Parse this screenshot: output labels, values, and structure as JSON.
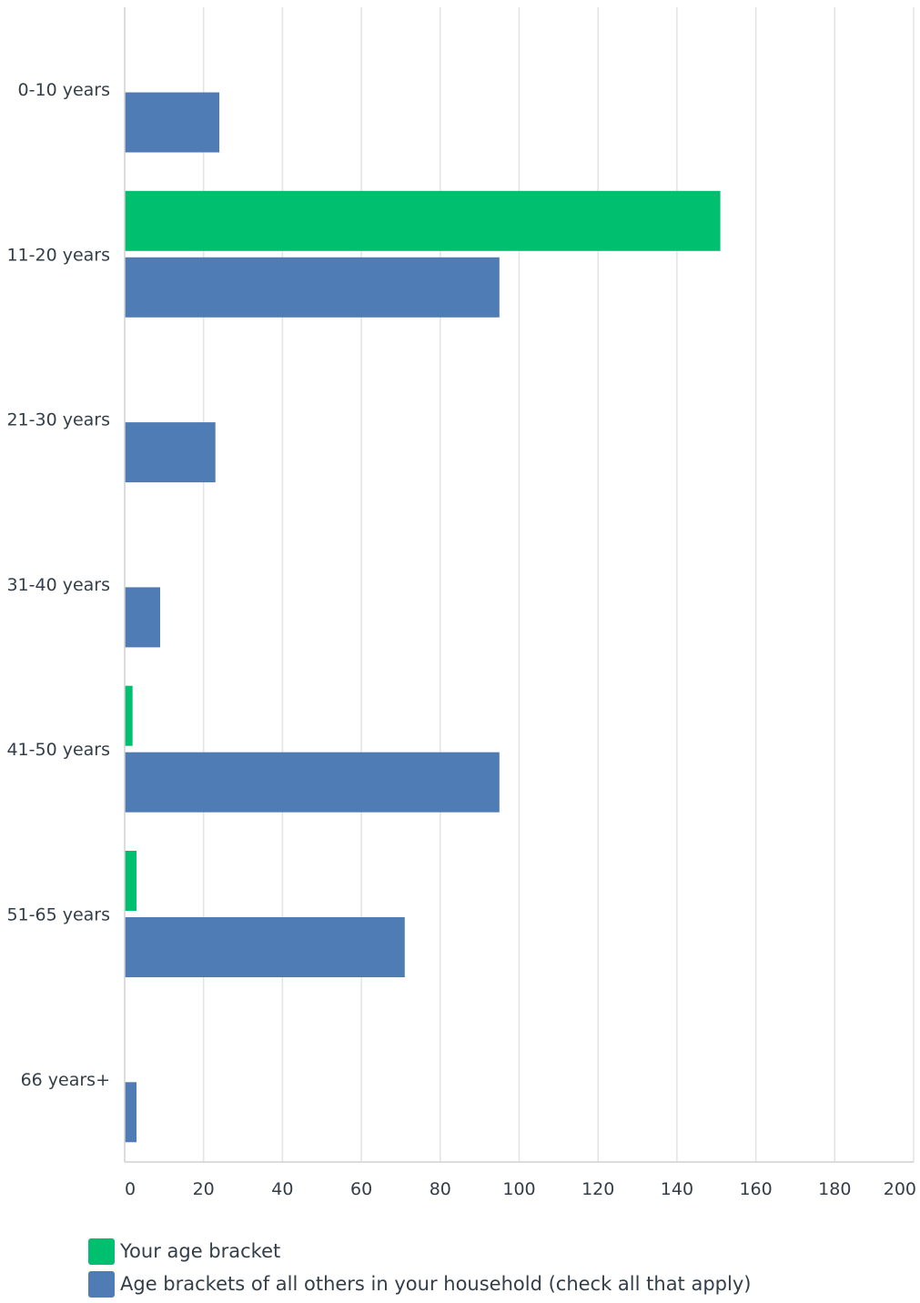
{
  "chart_data": {
    "type": "bar",
    "orientation": "horizontal",
    "categories": [
      "0-10 years",
      "11-20 years",
      "21-30 years",
      "31-40 years",
      "41-50 years",
      "51-65 years",
      "66 years+"
    ],
    "series": [
      {
        "name": "Your age bracket",
        "color": "#00bf6f",
        "values": [
          0,
          151,
          0,
          0,
          2,
          3,
          0
        ]
      },
      {
        "name": "Age brackets of all others in your household (check all that apply)",
        "color": "#507cb6",
        "values": [
          24,
          95,
          23,
          9,
          95,
          71,
          3
        ]
      }
    ],
    "x_ticks": [
      "0",
      "20",
      "40",
      "60",
      "80",
      "100",
      "120",
      "140",
      "160",
      "180",
      "200"
    ],
    "xlim": [
      0,
      200
    ],
    "grid": true,
    "legend_position": "bottom-left"
  }
}
